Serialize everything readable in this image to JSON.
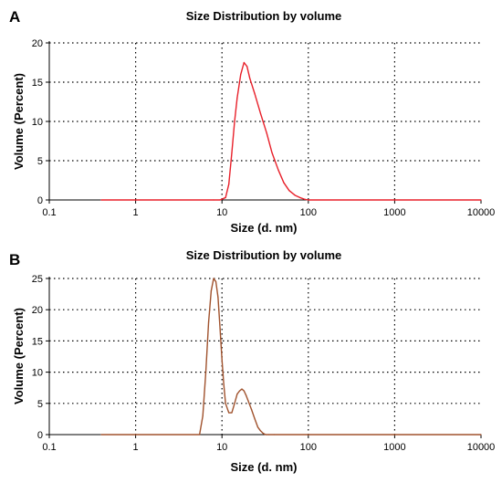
{
  "chart_data": [
    {
      "panel": "A",
      "type": "line",
      "title": "Size Distribution by volume",
      "xlabel": "Size (d. nm)",
      "ylabel": "Volume (Percent)",
      "x_scale": "log",
      "xlim": [
        0.1,
        10000
      ],
      "ylim": [
        0,
        20
      ],
      "x_ticks": [
        0.1,
        1,
        10,
        100,
        1000,
        10000
      ],
      "x_tick_labels": [
        "0.1",
        "1",
        "10",
        "100",
        "1000",
        "10000"
      ],
      "y_ticks": [
        0,
        5,
        10,
        15,
        20
      ],
      "y_tick_labels": [
        "0",
        "5",
        "10",
        "15",
        "20"
      ],
      "grid": true,
      "series": [
        {
          "color": "#e8202a",
          "x": [
            0.4,
            8,
            9.5,
            11,
            12,
            13,
            14,
            15,
            16.5,
            18,
            19.5,
            21,
            24,
            28,
            33,
            38,
            45,
            52,
            60,
            70,
            80,
            90,
            100,
            10000
          ],
          "y": [
            0,
            0,
            0,
            0.3,
            2,
            6,
            10,
            13,
            16,
            17.5,
            17,
            15.5,
            13.5,
            11,
            8.5,
            6,
            3.8,
            2.2,
            1.2,
            0.6,
            0.3,
            0.1,
            0,
            0
          ]
        }
      ]
    },
    {
      "panel": "B",
      "type": "line",
      "title": "Size Distribution by volume",
      "xlabel": "Size (d. nm)",
      "ylabel": "Volume (Percent)",
      "x_scale": "log",
      "xlim": [
        0.1,
        10000
      ],
      "ylim": [
        0,
        25
      ],
      "x_ticks": [
        0.1,
        1,
        10,
        100,
        1000,
        10000
      ],
      "x_tick_labels": [
        "0.1",
        "1",
        "10",
        "100",
        "1000",
        "10000"
      ],
      "y_ticks": [
        0,
        5,
        10,
        15,
        20,
        25
      ],
      "y_tick_labels": [
        "0",
        "5",
        "10",
        "15",
        "20",
        "25"
      ],
      "grid": true,
      "series": [
        {
          "color": "#a0522d",
          "x": [
            0.4,
            5.5,
            6.0,
            6.5,
            7.0,
            7.5,
            8.0,
            8.5,
            9.0,
            9.5,
            10,
            10.5,
            11,
            12,
            13,
            14,
            15,
            16,
            17,
            18,
            19,
            20,
            22,
            24,
            26,
            28,
            30,
            32,
            35,
            40,
            10000
          ],
          "y": [
            0,
            0,
            3,
            10,
            18,
            23,
            25,
            24.5,
            22,
            17,
            12,
            8,
            5,
            3.5,
            3.5,
            5,
            6.5,
            7,
            7.3,
            7,
            6.3,
            5.5,
            4,
            2.5,
            1.2,
            0.6,
            0.2,
            0,
            0,
            0,
            0
          ]
        }
      ]
    }
  ]
}
